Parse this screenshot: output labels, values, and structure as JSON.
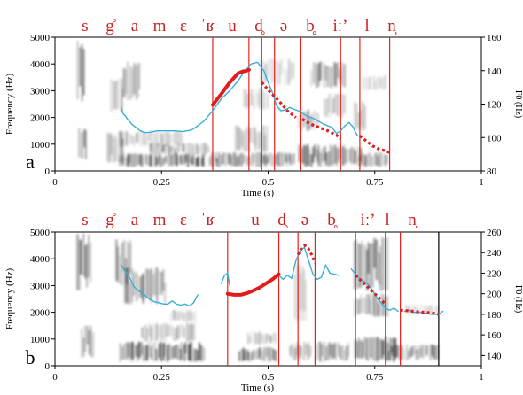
{
  "colors": {
    "segment_lines": "#e8231c",
    "segment_labels": "#cc1f1f",
    "pitch_contour": "#3aaed8",
    "target_line": "#e21c1c",
    "axis": "#000000",
    "background": "#ffffff"
  },
  "chart_data": [
    {
      "type": "line",
      "panel_label": "a",
      "segments": [
        "s",
        "g̊",
        "a",
        "m",
        "ɛ",
        "ˈʁ",
        "u",
        "d̥",
        "ə",
        "b̥",
        "iː’",
        "l",
        "n̩"
      ],
      "segment_boundaries": [
        0.37,
        0.455,
        0.485,
        0.515,
        0.575,
        0.67,
        0.715,
        0.785
      ],
      "xlabel": "Time (s)",
      "ylabel": "Frequency (Hz)",
      "y2label": "F0 (Hz)",
      "xlim": [
        0,
        1
      ],
      "xticks": [
        0,
        0.25,
        0.5,
        0.75,
        1
      ],
      "xtick_labels": [
        "0",
        "0.25",
        "0.5",
        "0.75",
        "1"
      ],
      "ylim": [
        0,
        5000
      ],
      "yticks": [
        0,
        1000,
        2000,
        3000,
        4000,
        5000
      ],
      "ytick_labels": [
        "0",
        "1000",
        "2000",
        "3000",
        "4000",
        "5000"
      ],
      "y2lim": [
        80,
        160
      ],
      "y2ticks": [
        80,
        100,
        120,
        140,
        160
      ],
      "y2tick_labels": [
        "80",
        "100",
        "120",
        "140",
        "160"
      ],
      "series": [
        {
          "style": "solid-blue-contour",
          "x": [
            0.155,
            0.16,
            0.165,
            0.17,
            0.18,
            0.19,
            0.2,
            0.21,
            0.22,
            0.24,
            0.26,
            0.28,
            0.3,
            0.32,
            0.33,
            0.34,
            0.35,
            0.37,
            0.39,
            0.41,
            0.43,
            0.44,
            0.45,
            0.46,
            0.475,
            0.49,
            0.5,
            0.51,
            0.52,
            0.53,
            0.54,
            0.55,
            0.57,
            0.59,
            0.61,
            0.63,
            0.65,
            0.66,
            0.67,
            0.68,
            0.69,
            0.7,
            0.705,
            0.71
          ],
          "y": [
            118,
            114,
            113,
            111,
            108,
            106,
            104,
            103,
            103,
            104,
            104,
            104,
            103.5,
            104.5,
            106,
            108,
            110,
            116,
            123,
            128,
            134,
            138,
            141,
            144,
            145,
            140,
            133,
            127,
            119,
            116,
            116.5,
            118,
            116,
            113,
            111,
            108,
            106,
            102.5,
            104,
            107,
            109,
            106,
            103,
            101
          ]
        },
        {
          "style": "solid-red-target",
          "x": [
            0.37,
            0.39,
            0.41,
            0.43,
            0.44,
            0.45,
            0.455
          ],
          "y": [
            119.5,
            126,
            133,
            138.5,
            139.5,
            140,
            140.5
          ]
        },
        {
          "style": "dotted-red-target",
          "x": [
            0.485,
            0.495,
            0.505,
            0.515,
            0.525,
            0.535,
            0.545,
            0.555,
            0.565
          ],
          "y": [
            133,
            130,
            127,
            124.5,
            122,
            119,
            116,
            114,
            112
          ]
        },
        {
          "style": "dotted-red-target",
          "x": [
            0.58,
            0.6,
            0.62,
            0.64,
            0.66,
            0.67
          ],
          "y": [
            111,
            108,
            106,
            104,
            101.5,
            99
          ]
        },
        {
          "style": "dotted-red-target",
          "x": [
            0.715,
            0.73,
            0.745,
            0.76,
            0.775,
            0.785
          ],
          "y": [
            101,
            98,
            95,
            93,
            92,
            91
          ]
        }
      ]
    },
    {
      "type": "line",
      "panel_label": "b",
      "segments": [
        "s",
        "g̊",
        "a",
        "m",
        "ɛ",
        "ˈʁ",
        "u",
        "d̥",
        "ə",
        "b̥",
        "iː’",
        "l",
        "n̩"
      ],
      "segment_boundaries": [
        0.405,
        0.525,
        0.57,
        0.61,
        0.705,
        0.775,
        0.81
      ],
      "end_marker": 0.9,
      "xlabel": "Time (s)",
      "ylabel": "Frequency (Hz)",
      "y2label": "F0 (Hz)",
      "xlim": [
        0,
        1
      ],
      "xticks": [
        0,
        0.25,
        0.5,
        0.75,
        1
      ],
      "xtick_labels": [
        "0",
        "0.25",
        "0.5",
        "0.75",
        "1"
      ],
      "ylim": [
        0,
        5000
      ],
      "yticks": [
        0,
        1000,
        2000,
        3000,
        4000,
        5000
      ],
      "ytick_labels": [
        "0",
        "1000",
        "2000",
        "3000",
        "4000",
        "5000"
      ],
      "y2lim": [
        130,
        260
      ],
      "y2ticks": [
        140,
        160,
        180,
        200,
        220,
        240,
        260
      ],
      "y2tick_labels": [
        "140",
        "160",
        "180",
        "200",
        "220",
        "240",
        "260"
      ],
      "series": [
        {
          "style": "solid-blue-contour",
          "x": [
            0.155,
            0.165,
            0.175,
            0.185,
            0.195,
            0.205,
            0.215,
            0.225,
            0.235,
            0.245,
            0.255,
            0.265,
            0.275,
            0.285,
            0.295,
            0.305,
            0.315,
            0.325,
            0.335
          ],
          "y": [
            228,
            222,
            216,
            207,
            203,
            201,
            197,
            194,
            192,
            191,
            190,
            190,
            193,
            190,
            189,
            190,
            188,
            191,
            199
          ]
        },
        {
          "style": "solid-blue-contour",
          "x": [
            0.39,
            0.398,
            0.405,
            0.41
          ],
          "y": [
            210,
            218,
            220,
            208
          ]
        },
        {
          "style": "solid-blue-contour",
          "x": [
            0.525,
            0.535,
            0.545,
            0.555,
            0.565,
            0.575,
            0.585,
            0.595,
            0.605,
            0.615,
            0.625,
            0.635,
            0.645,
            0.655,
            0.665
          ],
          "y": [
            218,
            214,
            218,
            215,
            232,
            242,
            245,
            232,
            219,
            214,
            216,
            228,
            220,
            219,
            218
          ]
        },
        {
          "style": "solid-blue-contour",
          "x": [
            0.695,
            0.705,
            0.715,
            0.725,
            0.735,
            0.745,
            0.755,
            0.765,
            0.775,
            0.785,
            0.795,
            0.805
          ],
          "y": [
            224,
            219,
            214,
            212,
            209,
            203,
            196,
            191,
            186,
            184,
            186,
            183
          ]
        },
        {
          "style": "solid-blue-contour",
          "x": [
            0.82,
            0.83,
            0.84,
            0.855,
            0.87,
            0.885,
            0.9,
            0.91
          ],
          "y": [
            183,
            184,
            182,
            182,
            181,
            180,
            180,
            183
          ]
        },
        {
          "style": "solid-red-target",
          "x": [
            0.405,
            0.42,
            0.435,
            0.45,
            0.465,
            0.48,
            0.495,
            0.51,
            0.525
          ],
          "y": [
            200,
            199,
            199,
            200.5,
            203,
            206,
            210,
            214,
            219
          ]
        },
        {
          "style": "dotted-red-target",
          "x": [
            0.57,
            0.578,
            0.586,
            0.594,
            0.602,
            0.61
          ],
          "y": [
            238,
            244,
            247,
            244,
            238,
            230
          ]
        },
        {
          "style": "dotted-red-target",
          "x": [
            0.705,
            0.72,
            0.735,
            0.75,
            0.765,
            0.775
          ],
          "y": [
            218,
            212,
            206,
            200,
            194,
            190
          ]
        },
        {
          "style": "dotted-red-target",
          "x": [
            0.81,
            0.83,
            0.85,
            0.87,
            0.89,
            0.9
          ],
          "y": [
            184,
            183.5,
            182.5,
            182,
            181,
            180
          ]
        }
      ]
    }
  ]
}
